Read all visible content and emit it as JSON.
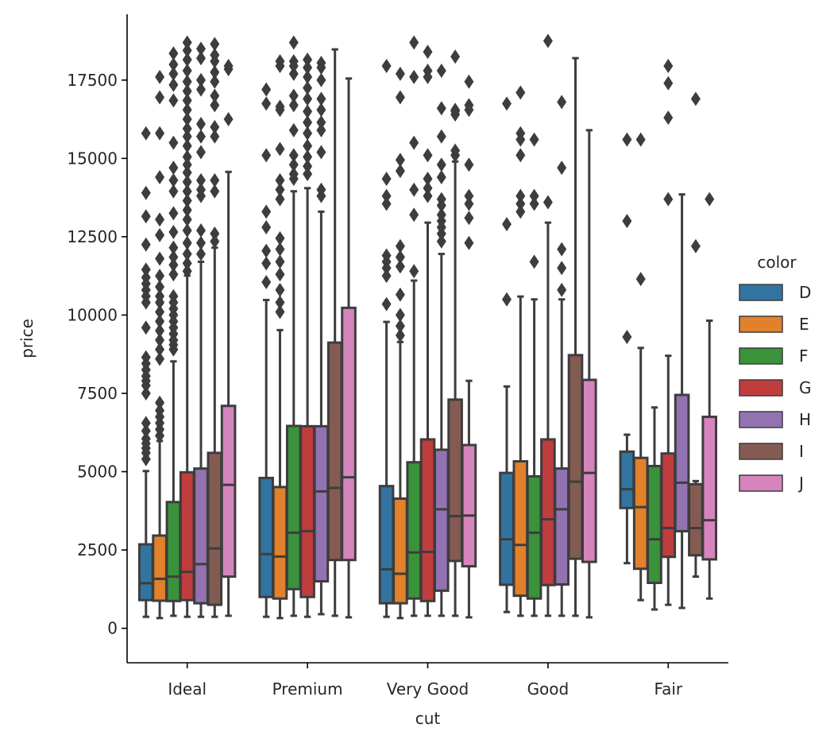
{
  "chart_data": {
    "type": "box",
    "xlabel": "cut",
    "ylabel": "price",
    "ylim": [
      -1100,
      19600
    ],
    "yticks": [
      0,
      2500,
      5000,
      7500,
      10000,
      12500,
      15000,
      17500
    ],
    "categories": [
      "Ideal",
      "Premium",
      "Very Good",
      "Good",
      "Fair"
    ],
    "legend": {
      "title": "color",
      "placement": "right"
    },
    "series": [
      {
        "name": "D",
        "color": "#3274a1",
        "boxes": [
          {
            "whislo": 367,
            "q1": 900,
            "med": 1440,
            "q3": 2680,
            "whishi": 5020,
            "fliers": [
              5400,
              5600,
              5750,
              5900,
              6050,
              6300,
              6550,
              7500,
              7750,
              7900,
              8050,
              8250,
              8450,
              8650,
              9600,
              10400,
              10600,
              10800,
              11000,
              11200,
              11450,
              12250,
              13150,
              13900,
              15800
            ]
          },
          {
            "whislo": 367,
            "q1": 1000,
            "med": 2370,
            "q3": 4800,
            "whishi": 10480,
            "fliers": [
              11050,
              11650,
              12050,
              12800,
              13300,
              15100,
              16750,
              17200
            ]
          },
          {
            "whislo": 367,
            "q1": 800,
            "med": 1880,
            "q3": 4540,
            "whishi": 9780,
            "fliers": [
              10350,
              11250,
              11500,
              11700,
              11900,
              13550,
              13800,
              14350,
              17950
            ]
          },
          {
            "whislo": 520,
            "q1": 1390,
            "med": 2840,
            "q3": 4960,
            "whishi": 7720,
            "fliers": [
              10500,
              12900,
              16750
            ]
          },
          {
            "whislo": 2080,
            "q1": 3840,
            "med": 4440,
            "q3": 5640,
            "whishi": 6180,
            "fliers": [
              9300,
              13000,
              15600
            ]
          }
        ]
      },
      {
        "name": "E",
        "color": "#e1812c",
        "boxes": [
          {
            "whislo": 326,
            "q1": 880,
            "med": 1580,
            "q3": 2960,
            "whishi": 5980,
            "fliers": [
              6150,
              6350,
              6550,
              6750,
              6950,
              7200,
              8600,
              8900,
              9200,
              9500,
              9800,
              10100,
              10400,
              10600,
              10900,
              11250,
              11800,
              12550,
              13050,
              14400,
              15800,
              16950,
              17600
            ]
          },
          {
            "whislo": 326,
            "q1": 950,
            "med": 2290,
            "q3": 4510,
            "whishi": 9520,
            "fliers": [
              10100,
              10400,
              10800,
              11300,
              11700,
              12100,
              12450,
              13700,
              14000,
              14300,
              15300,
              16550,
              16650,
              17950,
              18100
            ]
          },
          {
            "whislo": 326,
            "q1": 800,
            "med": 1740,
            "q3": 4140,
            "whishi": 9140,
            "fliers": [
              9350,
              9650,
              10000,
              10650,
              11550,
              11850,
              12200,
              14600,
              14950,
              16950,
              17700
            ]
          },
          {
            "whislo": 400,
            "q1": 1040,
            "med": 2660,
            "q3": 5330,
            "whishi": 10590,
            "fliers": [
              13300,
              13550,
              13800,
              15100,
              15600,
              15800,
              17100
            ]
          },
          {
            "whislo": 900,
            "q1": 1900,
            "med": 3870,
            "q3": 5440,
            "whishi": 8950,
            "fliers": [
              11150,
              15600
            ]
          }
        ]
      },
      {
        "name": "F",
        "color": "#3a923a",
        "boxes": [
          {
            "whislo": 400,
            "q1": 870,
            "med": 1650,
            "q3": 4030,
            "whishi": 8520,
            "fliers": [
              8900,
              9050,
              9200,
              9400,
              9600,
              9800,
              10000,
              10200,
              10400,
              10600,
              11300,
              11600,
              11850,
              12150,
              12650,
              13250,
              13950,
              14300,
              14700,
              15500,
              16850,
              17350,
              17700,
              18000,
              18350
            ]
          },
          {
            "whislo": 400,
            "q1": 1250,
            "med": 3050,
            "q3": 6460,
            "whishi": 13950,
            "fliers": [
              14350,
              14500,
              14800,
              15100,
              15900,
              16700,
              17000,
              17700,
              17950,
              18100,
              18700
            ]
          },
          {
            "whislo": 400,
            "q1": 950,
            "med": 2420,
            "q3": 5300,
            "whishi": 11100,
            "fliers": [
              11400,
              13200,
              14000,
              15500,
              17600,
              18700
            ]
          },
          {
            "whislo": 400,
            "q1": 950,
            "med": 3050,
            "q3": 4850,
            "whishi": 10500,
            "fliers": [
              11700,
              13550,
              13800,
              15600
            ]
          },
          {
            "whislo": 600,
            "q1": 1450,
            "med": 2840,
            "q3": 5180,
            "whishi": 7050,
            "fliers": []
          }
        ]
      },
      {
        "name": "G",
        "color": "#c03d3e",
        "boxes": [
          {
            "whislo": 367,
            "q1": 900,
            "med": 1800,
            "q3": 4980,
            "whishi": 11260,
            "fliers": [
              11400,
              11650,
              11950,
              12300,
              12700,
              13050,
              13350,
              13650,
              13950,
              14250,
              14550,
              14800,
              15050,
              15400,
              15700,
              15950,
              16250,
              16550,
              16850,
              17150,
              17450,
              17800,
              18150,
              18450,
              18700
            ]
          },
          {
            "whislo": 367,
            "q1": 1000,
            "med": 3100,
            "q3": 6450,
            "whishi": 14050,
            "fliers": [
              14500,
              14750,
              15050,
              15400,
              15800,
              16150,
              16500,
              16900,
              17250,
              17600,
              17900,
              18150
            ]
          },
          {
            "whislo": 400,
            "q1": 870,
            "med": 2440,
            "q3": 6030,
            "whishi": 12950,
            "fliers": [
              13800,
              14050,
              14350,
              15100,
              17600,
              17800,
              18400
            ]
          },
          {
            "whislo": 400,
            "q1": 1380,
            "med": 3480,
            "q3": 6030,
            "whishi": 12950,
            "fliers": [
              13600,
              18750
            ]
          },
          {
            "whislo": 750,
            "q1": 2280,
            "med": 3200,
            "q3": 5580,
            "whishi": 8700,
            "fliers": [
              13700,
              16300,
              17400,
              17950
            ]
          }
        ]
      },
      {
        "name": "H",
        "color": "#9372b2",
        "boxes": [
          {
            "whislo": 367,
            "q1": 800,
            "med": 2050,
            "q3": 5100,
            "whishi": 11700,
            "fliers": [
              11950,
              12300,
              12700,
              13800,
              14000,
              14300,
              15200,
              15700,
              16100,
              17200,
              17500,
              18200,
              18500
            ]
          },
          {
            "whislo": 450,
            "q1": 1500,
            "med": 4370,
            "q3": 6450,
            "whishi": 13300,
            "fliers": [
              13800,
              14000,
              15200,
              15900,
              16150,
              16550,
              16900,
              17500,
              17900,
              18050
            ]
          },
          {
            "whislo": 400,
            "q1": 1200,
            "med": 3800,
            "q3": 5700,
            "whishi": 11950,
            "fliers": [
              12350,
              12600,
              12800,
              13000,
              13200,
              13500,
              13700,
              14400,
              14800,
              15700,
              16600,
              17800
            ]
          },
          {
            "whislo": 400,
            "q1": 1400,
            "med": 3800,
            "q3": 5100,
            "whishi": 10500,
            "fliers": [
              10800,
              11500,
              12100,
              14700,
              16800
            ]
          },
          {
            "whislo": 650,
            "q1": 3100,
            "med": 4650,
            "q3": 7450,
            "whishi": 13850,
            "fliers": []
          }
        ]
      },
      {
        "name": "I",
        "color": "#845b53",
        "boxes": [
          {
            "whislo": 367,
            "q1": 750,
            "med": 2550,
            "q3": 5600,
            "whishi": 12150,
            "fliers": [
              12350,
              12600,
              13950,
              14300,
              15700,
              16000,
              16700,
              17000,
              17450,
              17750,
              18100,
              18300,
              18650
            ]
          },
          {
            "whislo": 400,
            "q1": 2180,
            "med": 4480,
            "q3": 9120,
            "whishi": 18480,
            "fliers": []
          },
          {
            "whislo": 400,
            "q1": 2150,
            "med": 3580,
            "q3": 7300,
            "whishi": 14900,
            "fliers": [
              15100,
              15250,
              16400,
              16500,
              16550,
              18250
            ]
          },
          {
            "whislo": 400,
            "q1": 2220,
            "med": 4680,
            "q3": 8720,
            "whishi": 18200,
            "fliers": []
          },
          {
            "whislo": 1650,
            "q1": 2330,
            "med": 3200,
            "q3": 4600,
            "whishi": 4700,
            "fliers": [
              12200,
              16900
            ]
          }
        ]
      },
      {
        "name": "J",
        "color": "#d684bd",
        "boxes": [
          {
            "whislo": 400,
            "q1": 1650,
            "med": 4580,
            "q3": 7100,
            "whishi": 14570,
            "fliers": [
              16250,
              17850,
              17950
            ]
          },
          {
            "whislo": 350,
            "q1": 2180,
            "med": 4820,
            "q3": 10230,
            "whishi": 17550,
            "fliers": []
          },
          {
            "whislo": 350,
            "q1": 1980,
            "med": 3600,
            "q3": 5850,
            "whishi": 7900,
            "fliers": [
              12300,
              13100,
              13550,
              13800,
              14800,
              16550,
              16700,
              17450
            ]
          },
          {
            "whislo": 350,
            "q1": 2120,
            "med": 4960,
            "q3": 7930,
            "whishi": 15900,
            "fliers": []
          },
          {
            "whislo": 950,
            "q1": 2200,
            "med": 3450,
            "q3": 6750,
            "whishi": 9820,
            "fliers": [
              13700
            ]
          }
        ]
      }
    ]
  }
}
